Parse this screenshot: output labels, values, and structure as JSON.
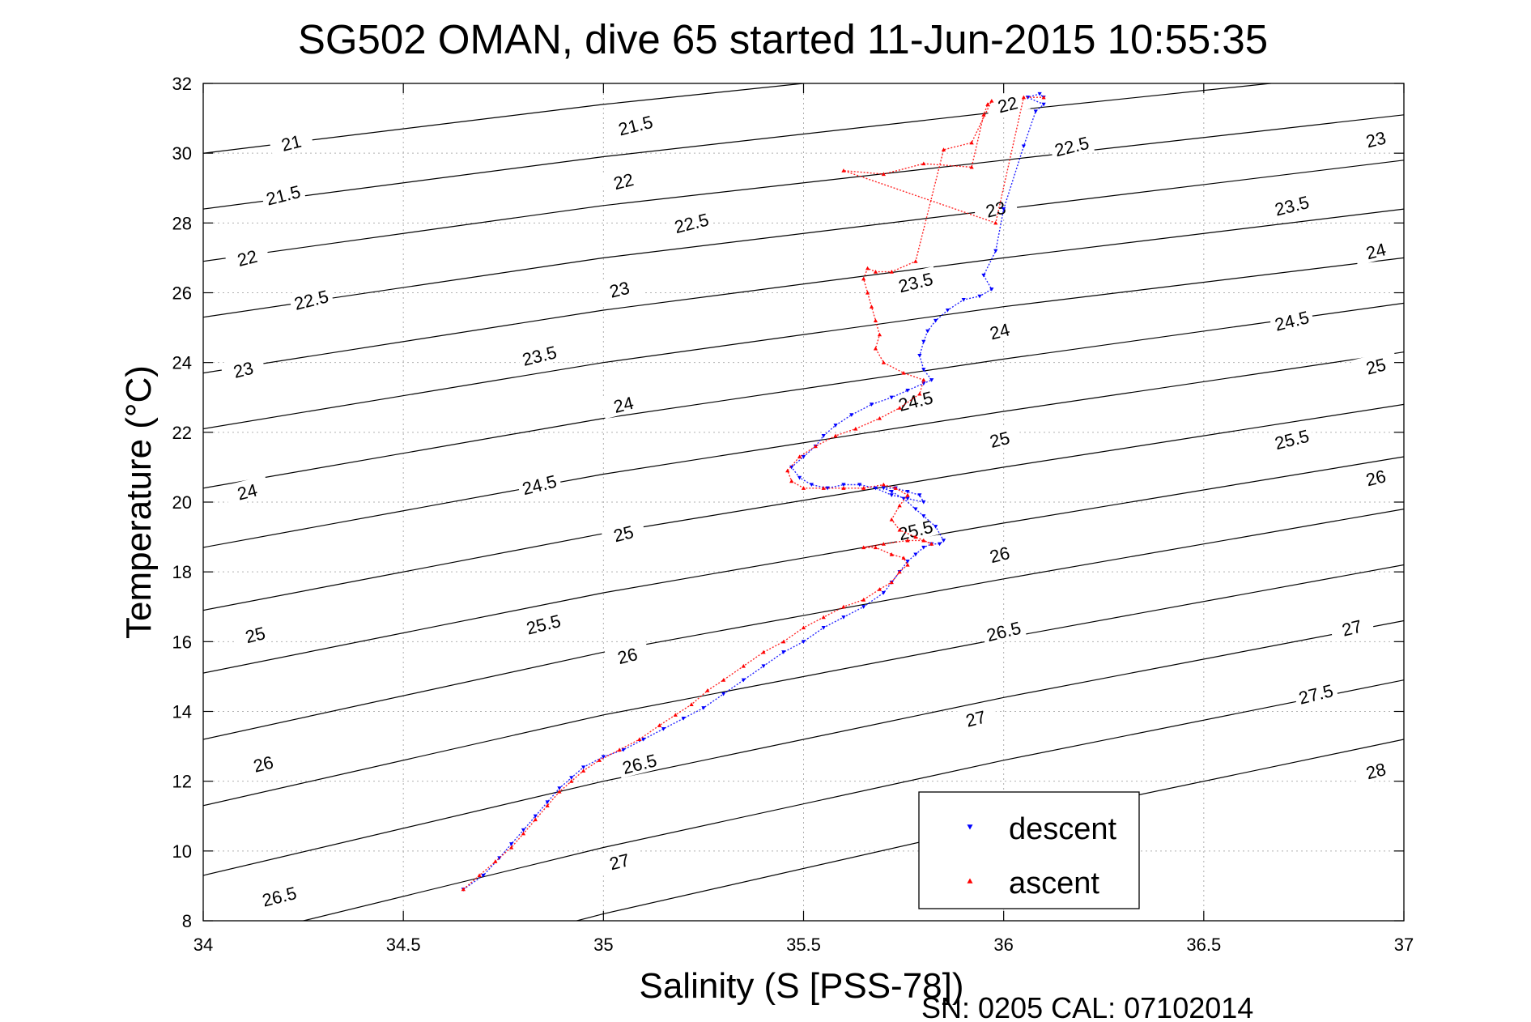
{
  "chart_data": {
    "type": "scatter",
    "title": "SG502 OMAN, dive 65 started 11-Jun-2015 10:55:35",
    "xlabel": "Salinity (S [PSS-78])",
    "ylabel": "Temperature (°C)",
    "footer": "SN: 0205  CAL: 07102014",
    "xlim": [
      34,
      37
    ],
    "ylim": [
      8,
      32
    ],
    "xticks": [
      34,
      34.5,
      35,
      35.5,
      36,
      36.5,
      37
    ],
    "xtick_labels": [
      "34",
      "34.5",
      "35",
      "35.5",
      "36",
      "36.5",
      "37"
    ],
    "yticks": [
      8,
      10,
      12,
      14,
      16,
      18,
      20,
      22,
      24,
      26,
      28,
      30,
      32
    ],
    "ytick_labels": [
      "8",
      "10",
      "12",
      "14",
      "16",
      "18",
      "20",
      "22",
      "24",
      "26",
      "28",
      "30",
      "32"
    ],
    "grid": true,
    "legend_position": "bottom-right",
    "density_contours": {
      "color": "#000000",
      "lines": [
        {
          "value": 21,
          "label": "21",
          "points": [
            [
              34,
              30.0
            ],
            [
              35,
              31.4
            ],
            [
              36,
              32.6
            ],
            [
              36.3,
              33.0
            ]
          ]
        },
        {
          "value": 21.5,
          "label": "21.5",
          "points": [
            [
              34,
              28.4
            ],
            [
              35,
              29.9
            ],
            [
              36,
              31.2
            ],
            [
              37,
              32.4
            ]
          ]
        },
        {
          "value": 22,
          "label": "22",
          "points": [
            [
              34,
              26.9
            ],
            [
              35,
              28.5
            ],
            [
              36,
              29.8
            ],
            [
              37,
              31.1
            ]
          ]
        },
        {
          "value": 22.5,
          "label": "22.5",
          "points": [
            [
              34,
              25.3
            ],
            [
              35,
              27.0
            ],
            [
              36,
              28.4
            ],
            [
              37,
              29.8
            ]
          ]
        },
        {
          "value": 23,
          "label": "23",
          "points": [
            [
              34,
              23.7
            ],
            [
              35,
              25.5
            ],
            [
              36,
              27.0
            ],
            [
              37,
              28.4
            ]
          ]
        },
        {
          "value": 23.5,
          "label": "23.5",
          "points": [
            [
              34,
              22.1
            ],
            [
              35,
              24.0
            ],
            [
              36,
              25.6
            ],
            [
              37,
              27.0
            ]
          ]
        },
        {
          "value": 24,
          "label": "24",
          "points": [
            [
              34,
              20.4
            ],
            [
              35,
              22.4
            ],
            [
              36,
              24.1
            ],
            [
              37,
              25.7
            ]
          ]
        },
        {
          "value": 24.5,
          "label": "24.5",
          "points": [
            [
              34,
              18.7
            ],
            [
              35,
              20.8
            ],
            [
              36,
              22.6
            ],
            [
              37,
              24.3
            ]
          ]
        },
        {
          "value": 25,
          "label": "25",
          "points": [
            [
              34,
              16.9
            ],
            [
              35,
              19.1
            ],
            [
              36,
              21.0
            ],
            [
              37,
              22.8
            ]
          ]
        },
        {
          "value": 25.5,
          "label": "25.5",
          "points": [
            [
              34,
              15.1
            ],
            [
              35,
              17.4
            ],
            [
              36,
              19.4
            ],
            [
              37,
              21.3
            ]
          ]
        },
        {
          "value": 26,
          "label": "26",
          "points": [
            [
              34,
              13.2
            ],
            [
              35,
              15.7
            ],
            [
              36,
              17.8
            ],
            [
              37,
              19.8
            ]
          ]
        },
        {
          "value": 26.5,
          "label": "26.5",
          "points": [
            [
              34,
              11.3
            ],
            [
              35,
              13.9
            ],
            [
              36,
              16.1
            ],
            [
              37,
              18.2
            ]
          ]
        },
        {
          "value": 27,
          "label": "27",
          "points": [
            [
              34,
              9.3
            ],
            [
              35,
              12.0
            ],
            [
              36,
              14.4
            ],
            [
              37,
              16.6
            ]
          ]
        },
        {
          "value": 27.5,
          "label": "27.5",
          "points": [
            [
              34,
              7.3
            ],
            [
              35,
              10.1
            ],
            [
              36,
              12.6
            ],
            [
              37,
              14.9
            ]
          ]
        },
        {
          "value": 28,
          "label": "28",
          "points": [
            [
              34,
              5.2
            ],
            [
              35,
              8.2
            ],
            [
              36,
              10.8
            ],
            [
              37,
              13.2
            ]
          ]
        }
      ],
      "labels": [
        {
          "text": "21",
          "x": 34.22,
          "y": 30.3
        },
        {
          "text": "21.5",
          "x": 34.2,
          "y": 28.8
        },
        {
          "text": "21.5",
          "x": 35.08,
          "y": 30.8
        },
        {
          "text": "22",
          "x": 34.11,
          "y": 27.0
        },
        {
          "text": "22",
          "x": 35.05,
          "y": 29.2
        },
        {
          "text": "22",
          "x": 36.01,
          "y": 31.4
        },
        {
          "text": "22.5",
          "x": 34.27,
          "y": 25.8
        },
        {
          "text": "22.5",
          "x": 35.22,
          "y": 28.0
        },
        {
          "text": "22.5",
          "x": 36.17,
          "y": 30.2
        },
        {
          "text": "23",
          "x": 34.1,
          "y": 23.8
        },
        {
          "text": "23",
          "x": 35.04,
          "y": 26.1
        },
        {
          "text": "23",
          "x": 35.98,
          "y": 28.4
        },
        {
          "text": "23",
          "x": 36.93,
          "y": 30.4
        },
        {
          "text": "23.5",
          "x": 34.84,
          "y": 24.2
        },
        {
          "text": "23.5",
          "x": 35.78,
          "y": 26.3
        },
        {
          "text": "23.5",
          "x": 36.72,
          "y": 28.5
        },
        {
          "text": "24",
          "x": 34.11,
          "y": 20.3
        },
        {
          "text": "24",
          "x": 35.05,
          "y": 22.8
        },
        {
          "text": "24",
          "x": 35.99,
          "y": 24.9
        },
        {
          "text": "24",
          "x": 36.93,
          "y": 27.2
        },
        {
          "text": "24.5",
          "x": 34.84,
          "y": 20.5
        },
        {
          "text": "24.5",
          "x": 35.78,
          "y": 22.9
        },
        {
          "text": "24.5",
          "x": 36.72,
          "y": 25.2
        },
        {
          "text": "25",
          "x": 34.13,
          "y": 16.2
        },
        {
          "text": "25",
          "x": 35.05,
          "y": 19.1
        },
        {
          "text": "25",
          "x": 35.99,
          "y": 21.8
        },
        {
          "text": "25",
          "x": 36.93,
          "y": 23.9
        },
        {
          "text": "25.5",
          "x": 34.85,
          "y": 16.5
        },
        {
          "text": "25.5",
          "x": 35.78,
          "y": 19.2
        },
        {
          "text": "25.5",
          "x": 36.72,
          "y": 21.8
        },
        {
          "text": "26",
          "x": 34.15,
          "y": 12.5
        },
        {
          "text": "26",
          "x": 35.06,
          "y": 15.6
        },
        {
          "text": "26",
          "x": 35.99,
          "y": 18.5
        },
        {
          "text": "26",
          "x": 36.93,
          "y": 20.7
        },
        {
          "text": "26.5",
          "x": 34.19,
          "y": 8.7
        },
        {
          "text": "26.5",
          "x": 35.09,
          "y": 12.5
        },
        {
          "text": "26.5",
          "x": 36.0,
          "y": 16.3
        },
        {
          "text": "27",
          "x": 35.04,
          "y": 9.7
        },
        {
          "text": "27",
          "x": 35.93,
          "y": 13.8
        },
        {
          "text": "27",
          "x": 36.87,
          "y": 16.4
        },
        {
          "text": "27.5",
          "x": 36.78,
          "y": 14.5
        },
        {
          "text": "28",
          "x": 36.93,
          "y": 12.3
        }
      ]
    },
    "series": [
      {
        "name": "descent",
        "color": "#0000ff",
        "marker": "triangle-down",
        "x": [
          34.65,
          34.7,
          34.74,
          34.77,
          34.8,
          34.83,
          34.86,
          34.89,
          34.92,
          34.95,
          35.0,
          35.05,
          35.1,
          35.15,
          35.2,
          35.25,
          35.3,
          35.35,
          35.4,
          35.45,
          35.5,
          35.55,
          35.6,
          35.65,
          35.7,
          35.72,
          35.74,
          35.76,
          35.78,
          35.8,
          35.82,
          35.84,
          35.85,
          35.83,
          35.8,
          35.78,
          35.75,
          35.72,
          35.7,
          35.73,
          35.76,
          35.79,
          35.8,
          35.76,
          35.72,
          35.68,
          35.64,
          35.6,
          35.56,
          35.52,
          35.49,
          35.47,
          35.5,
          35.53,
          35.55,
          35.58,
          35.62,
          35.67,
          35.72,
          35.76,
          35.8,
          35.82,
          35.8,
          35.79,
          35.8,
          35.81,
          35.83,
          35.86,
          35.9,
          35.94,
          35.97,
          35.95,
          35.98,
          36.0,
          36.05,
          36.08,
          36.1,
          36.06,
          36.09,
          36.1
        ],
        "y": [
          8.9,
          9.3,
          9.8,
          10.2,
          10.6,
          11.0,
          11.4,
          11.8,
          12.1,
          12.4,
          12.7,
          12.9,
          13.2,
          13.5,
          13.8,
          14.1,
          14.5,
          14.9,
          15.3,
          15.7,
          16.0,
          16.4,
          16.7,
          17.0,
          17.4,
          17.7,
          18.0,
          18.3,
          18.5,
          18.7,
          18.8,
          18.8,
          18.9,
          19.3,
          19.6,
          19.8,
          20.1,
          20.3,
          20.4,
          20.4,
          20.3,
          20.2,
          20.0,
          20.1,
          20.2,
          20.4,
          20.5,
          20.5,
          20.4,
          20.5,
          20.7,
          21.0,
          21.3,
          21.6,
          21.9,
          22.2,
          22.5,
          22.8,
          23.0,
          23.2,
          23.4,
          23.5,
          23.8,
          24.2,
          24.6,
          24.9,
          25.2,
          25.5,
          25.8,
          25.9,
          26.1,
          26.5,
          27.2,
          28.4,
          30.2,
          31.2,
          31.4,
          31.6,
          31.7,
          31.6
        ]
      },
      {
        "name": "ascent",
        "color": "#ff0000",
        "marker": "triangle-up",
        "x": [
          34.65,
          34.69,
          34.73,
          34.77,
          34.8,
          34.83,
          34.86,
          34.89,
          34.92,
          34.95,
          34.99,
          35.04,
          35.09,
          35.14,
          35.18,
          35.22,
          35.26,
          35.3,
          35.35,
          35.4,
          35.45,
          35.5,
          35.55,
          35.6,
          35.65,
          35.69,
          35.72,
          35.74,
          35.76,
          35.75,
          35.72,
          35.68,
          35.65,
          35.7,
          35.76,
          35.8,
          35.82,
          35.78,
          35.74,
          35.72,
          35.74,
          35.76,
          35.73,
          35.7,
          35.65,
          35.6,
          35.55,
          35.5,
          35.47,
          35.46,
          35.49,
          35.53,
          35.58,
          35.63,
          35.69,
          35.74,
          35.79,
          35.8,
          35.75,
          35.7,
          35.68,
          35.69,
          35.68,
          35.67,
          35.66,
          35.65,
          35.66,
          35.68,
          35.72,
          35.78,
          35.85,
          35.92,
          35.97,
          35.96,
          35.95,
          35.92,
          35.8,
          35.7,
          35.6,
          35.98,
          36.05,
          36.1
        ],
        "y": [
          8.9,
          9.3,
          9.7,
          10.1,
          10.5,
          10.9,
          11.3,
          11.7,
          12.0,
          12.3,
          12.6,
          12.9,
          13.2,
          13.6,
          13.9,
          14.2,
          14.6,
          14.9,
          15.3,
          15.7,
          16.0,
          16.4,
          16.7,
          17.0,
          17.2,
          17.5,
          17.7,
          18.0,
          18.2,
          18.4,
          18.5,
          18.7,
          18.7,
          18.8,
          18.9,
          18.9,
          18.8,
          19.0,
          19.2,
          19.5,
          19.9,
          20.2,
          20.4,
          20.5,
          20.4,
          20.4,
          20.4,
          20.4,
          20.6,
          20.9,
          21.3,
          21.6,
          21.9,
          22.1,
          22.4,
          22.7,
          23.1,
          23.5,
          23.7,
          24.0,
          24.4,
          24.8,
          25.2,
          25.6,
          26.0,
          26.4,
          26.7,
          26.6,
          26.6,
          26.9,
          30.1,
          30.3,
          31.5,
          31.4,
          31.1,
          29.6,
          29.7,
          29.4,
          29.5,
          28.0,
          31.6,
          31.6
        ]
      }
    ]
  }
}
